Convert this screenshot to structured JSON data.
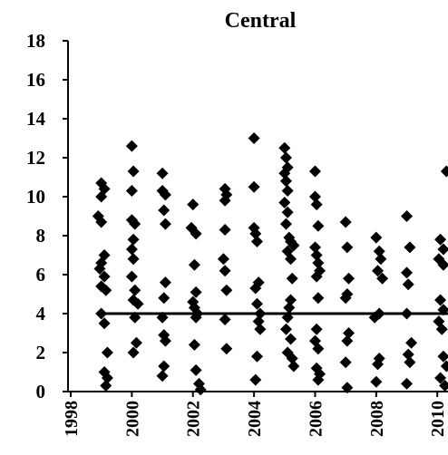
{
  "chart_data": {
    "type": "scatter",
    "title": "Central",
    "xlim": [
      1998,
      2010.35
    ],
    "ylim": [
      0,
      18
    ],
    "xticks": [
      1998,
      2000,
      2002,
      2004,
      2006,
      2008,
      2010
    ],
    "yticks": [
      0,
      2,
      4,
      6,
      8,
      10,
      12,
      14,
      16,
      18
    ],
    "series": [
      {
        "type": "scatter",
        "color": "#000000",
        "x": [
          1999.0,
          1999.1,
          1999.0,
          1998.9,
          1999.0,
          1999.1,
          1999.0,
          1998.95,
          1999.1,
          1999.0,
          1999.15,
          1999.0,
          1999.1,
          1999.2,
          1999.1,
          1999.2,
          1999.15,
          2000.0,
          2000.05,
          2000.0,
          2000.0,
          2000.1,
          2000.05,
          2000.0,
          2000.05,
          2000.0,
          2000.1,
          2000.05,
          2000.2,
          2000.1,
          2000.15,
          2000.05,
          2001.0,
          2001.0,
          2001.1,
          2001.05,
          2001.1,
          2001.1,
          2001.05,
          2001.0,
          2001.05,
          2001.1,
          2001.05,
          2001.0,
          2002.0,
          2001.95,
          2002.1,
          2002.05,
          2002.1,
          2002.0,
          2002.05,
          2002.15,
          2002.1,
          2002.05,
          2002.1,
          2002.2,
          2002.25,
          2003.05,
          2003.1,
          2003.05,
          2003.05,
          2003.0,
          2003.05,
          2003.1,
          2003.05,
          2003.1,
          2004.0,
          2004.0,
          2004.0,
          2004.05,
          2004.1,
          2004.15,
          2004.05,
          2004.1,
          2004.2,
          2004.15,
          2004.2,
          2004.1,
          2004.05,
          2005.0,
          2005.05,
          2005.1,
          2005.0,
          2005.05,
          2005.1,
          2005.0,
          2005.1,
          2005.05,
          2005.15,
          2005.2,
          2005.3,
          2005.1,
          2005.2,
          2005.25,
          2005.2,
          2005.15,
          2005.1,
          2005.05,
          2005.2,
          2005.1,
          2005.25,
          2005.3,
          2006.0,
          2006.0,
          2006.05,
          2006.1,
          2006.0,
          2006.05,
          2006.1,
          2006.15,
          2006.05,
          2006.1,
          2006.05,
          2006.0,
          2006.1,
          2006.05,
          2006.15,
          2006.1,
          2007.0,
          2007.05,
          2007.1,
          2007.05,
          2007.0,
          2007.1,
          2007.05,
          2007.0,
          2007.05,
          2008.0,
          2008.1,
          2008.15,
          2008.05,
          2008.2,
          2008.1,
          2007.95,
          2008.1,
          2008.05,
          2008.0,
          2009.0,
          2009.1,
          2009.0,
          2009.05,
          2009.0,
          2009.15,
          2009.05,
          2009.1,
          2009.0,
          2010.3,
          2010.1,
          2010.2,
          2010.05,
          2010.2,
          2010.1,
          2010.2,
          2010.05,
          2010.15,
          2010.2,
          2010.3,
          2010.1,
          2010.25
        ],
        "values": [
          10.7,
          10.4,
          10.0,
          9.0,
          8.7,
          7.0,
          6.6,
          6.3,
          5.9,
          5.4,
          5.2,
          4.0,
          3.5,
          2.0,
          1.0,
          0.7,
          0.3,
          12.6,
          11.3,
          10.3,
          8.8,
          8.6,
          7.8,
          7.3,
          6.8,
          5.9,
          5.2,
          4.7,
          4.5,
          3.8,
          2.5,
          2.0,
          11.2,
          10.3,
          10.1,
          9.3,
          8.6,
          5.6,
          4.8,
          3.8,
          2.9,
          2.6,
          1.3,
          0.8,
          9.6,
          8.4,
          8.1,
          6.5,
          5.1,
          4.6,
          4.3,
          4.0,
          3.8,
          2.4,
          1.1,
          0.4,
          0.1,
          10.4,
          10.1,
          9.8,
          8.3,
          6.8,
          6.2,
          5.2,
          3.7,
          2.2,
          13.0,
          10.5,
          8.4,
          8.1,
          7.7,
          5.6,
          5.3,
          4.5,
          4.0,
          3.6,
          3.2,
          1.8,
          0.6,
          12.5,
          12.0,
          11.5,
          11.2,
          10.8,
          10.3,
          9.7,
          9.2,
          8.6,
          7.9,
          7.7,
          7.5,
          7.2,
          6.8,
          5.8,
          4.7,
          4.3,
          3.8,
          3.2,
          2.7,
          2.0,
          1.7,
          1.3,
          11.3,
          10.0,
          9.6,
          8.5,
          7.4,
          7.0,
          6.6,
          6.2,
          5.9,
          4.8,
          3.2,
          2.6,
          2.2,
          1.2,
          0.9,
          0.6,
          8.7,
          7.4,
          5.8,
          5.0,
          4.8,
          3.0,
          2.6,
          1.5,
          0.2,
          7.9,
          7.2,
          6.8,
          6.2,
          5.8,
          4.0,
          3.8,
          1.7,
          1.4,
          0.5,
          9.0,
          7.4,
          6.1,
          5.5,
          4.0,
          2.5,
          1.9,
          1.5,
          0.4,
          11.3,
          7.8,
          7.3,
          6.8,
          6.5,
          4.7,
          4.2,
          3.6,
          3.2,
          1.8,
          1.3,
          0.7,
          0.3
        ]
      },
      {
        "type": "line",
        "color": "#000000",
        "x": [
          1998.9,
          2010.35
        ],
        "values": [
          4,
          4
        ]
      }
    ]
  }
}
